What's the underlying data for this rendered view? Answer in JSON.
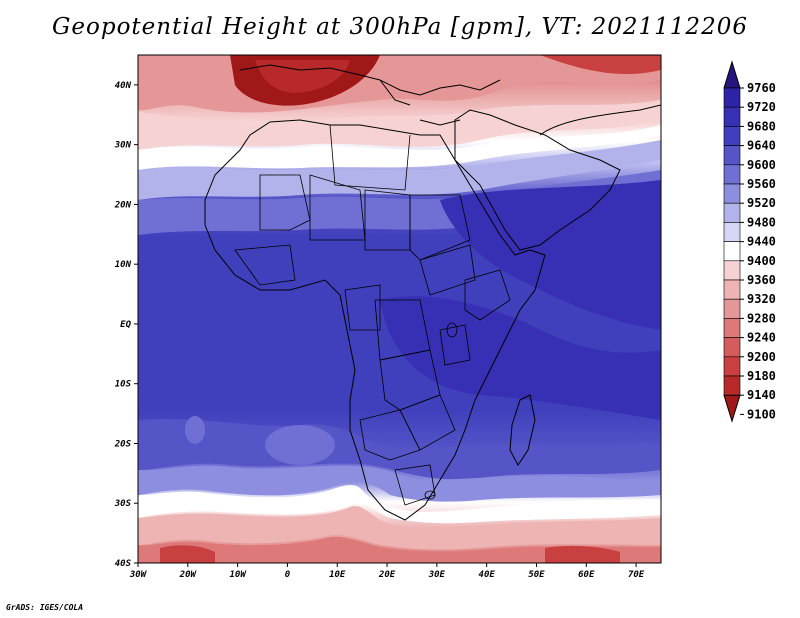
{
  "title": "Geopotential Height at 300hPa [gpm], VT: 2021112206",
  "footer": "GrADS: IGES/COLA",
  "map": {
    "lon_range": [
      -30,
      75
    ],
    "lat_range": [
      -40,
      45
    ],
    "x_ticks": [
      "30W",
      "20W",
      "10W",
      "0",
      "10E",
      "20E",
      "30E",
      "40E",
      "50E",
      "60E",
      "70E"
    ],
    "y_ticks": [
      "40N",
      "30N",
      "20N",
      "10N",
      "EQ",
      "10S",
      "20S",
      "30S",
      "40S"
    ]
  },
  "colorbar": {
    "levels": [
      "9760",
      "9720",
      "9680",
      "9640",
      "9600",
      "9560",
      "9520",
      "9480",
      "9440",
      "9400",
      "9360",
      "9320",
      "9280",
      "9240",
      "9200",
      "9180",
      "9140",
      "9100"
    ],
    "colors": [
      "#27157f",
      "#2d23a6",
      "#3730b4",
      "#4040bd",
      "#5555c8",
      "#6f6fd4",
      "#8e8ee0",
      "#b3b3ec",
      "#d6d6f6",
      "#ffffff",
      "#f6d2d2",
      "#eeb4b4",
      "#e59797",
      "#dd7979",
      "#d45c5c",
      "#c94040",
      "#b82a2a",
      "#a01818"
    ]
  }
}
